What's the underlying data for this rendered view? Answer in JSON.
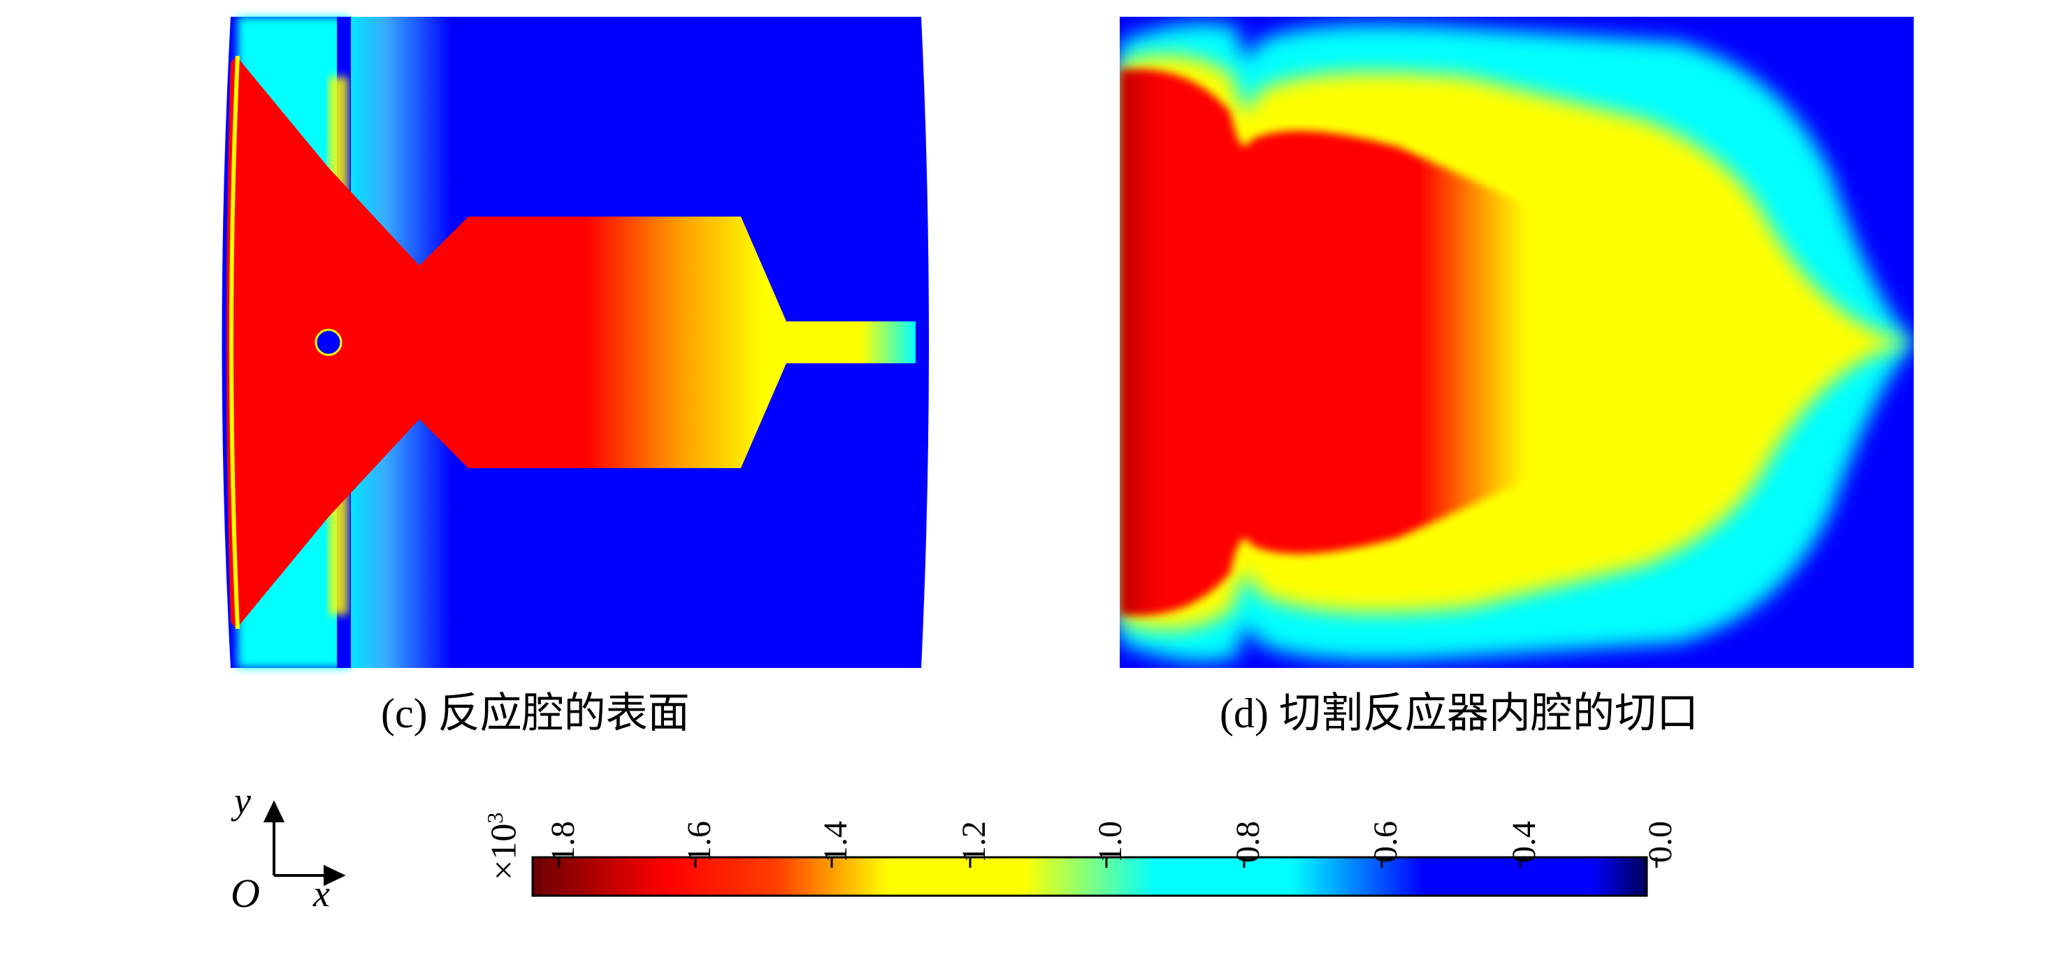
{
  "captions": {
    "c": "(c) 反应腔的表面",
    "d": "(d) 切割反应器内腔的切口"
  },
  "colorbar": {
    "scale_prefix": "×10",
    "scale_exp": "3",
    "ticks": [
      "1.8",
      "1.6",
      "1.4",
      "1.2",
      "1.0",
      "0.8",
      "0.6",
      "0.4",
      "0.0"
    ],
    "colors": [
      "#6b0000",
      "#ff0000",
      "#ffff00",
      "#00ffff",
      "#0000ff",
      "#00005a"
    ]
  },
  "axes": {
    "y": "y",
    "x": "x",
    "origin": "O"
  }
}
